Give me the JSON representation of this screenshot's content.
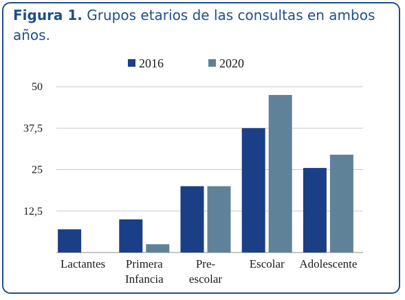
{
  "figure": {
    "label": "Figura 1.",
    "caption": "Grupos etarios de las consultas en ambos años."
  },
  "chart_data": {
    "type": "bar",
    "title": "",
    "xlabel": "",
    "ylabel": "",
    "categories": [
      [
        "Lactantes"
      ],
      [
        "Primera",
        "Infancia"
      ],
      [
        "Pre-",
        "escolar"
      ],
      [
        "Escolar"
      ],
      [
        "Adolescente"
      ]
    ],
    "series": [
      {
        "name": "2016",
        "values": [
          7,
          10,
          20,
          37.5,
          25.5
        ],
        "color": "#1a3f86"
      },
      {
        "name": "2020",
        "values": [
          0,
          2.5,
          20,
          47.5,
          29.5
        ],
        "color": "#5f8299"
      }
    ],
    "yticks": [
      {
        "value": 12.5,
        "label": "12,5"
      },
      {
        "value": 25,
        "label": "25"
      },
      {
        "value": 37.5,
        "label": "37,5"
      },
      {
        "value": 50,
        "label": "50"
      }
    ],
    "ylim": [
      0,
      50
    ],
    "grid": true,
    "legend_position": "top-center"
  }
}
